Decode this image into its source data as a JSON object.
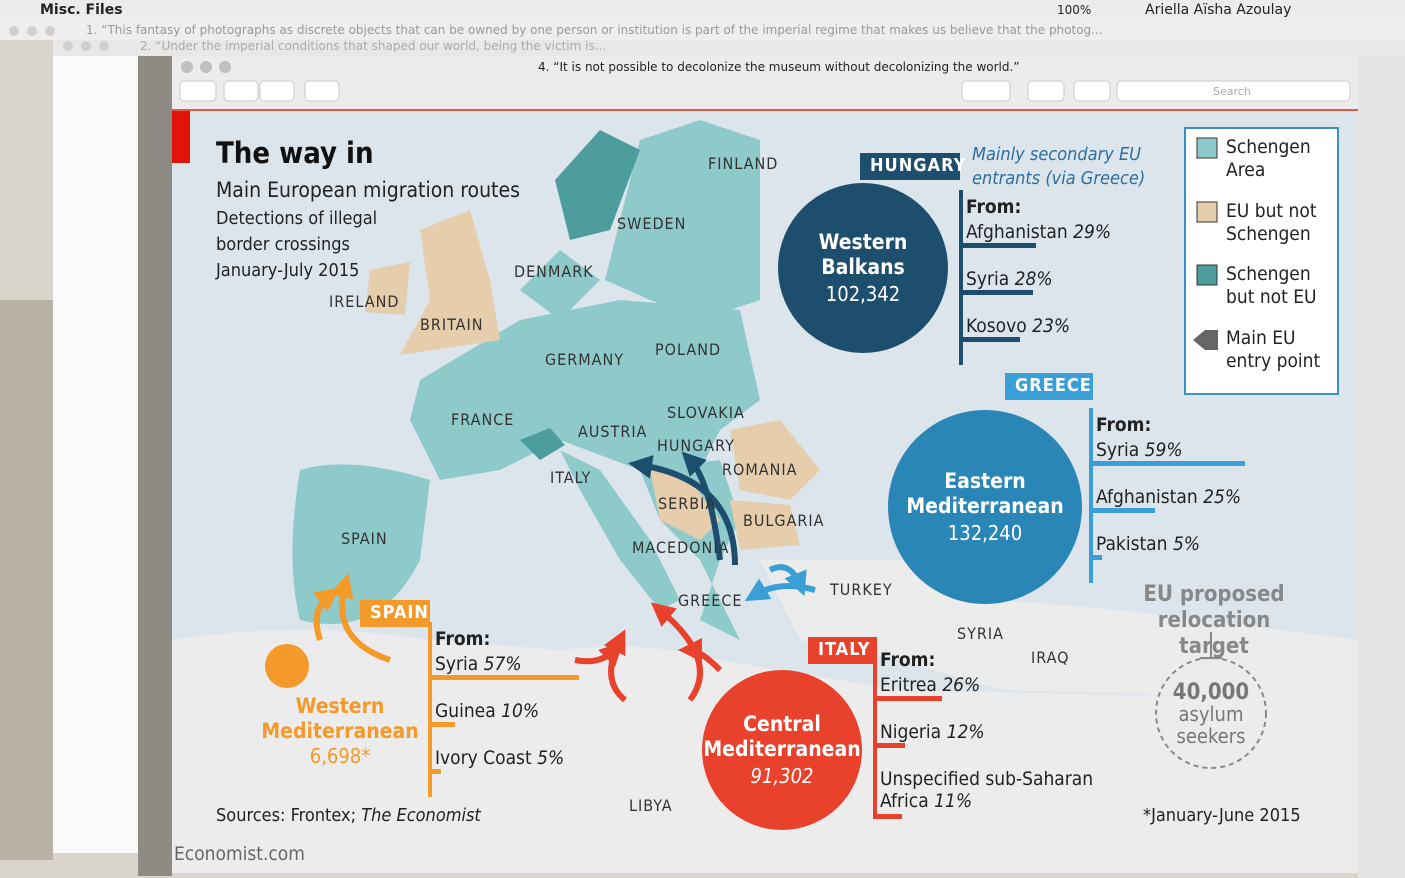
{
  "menubar": {
    "app": "Misc. Files",
    "battery": "100%",
    "user": "Ariella Aïsha Azoulay"
  },
  "background_windows": [
    "1. “This fantasy of photographs as discrete objects that can be owned by one person or institution is part of the imperial regime that makes us believe that the photog...",
    "2. “Under the imperial conditions that shaped our world, being the victim is..."
  ],
  "window": {
    "title": "4. “It is not possible to decolonize the museum without decolonizing the world.”",
    "search": "Search"
  },
  "infographic": {
    "title": "The way in",
    "subtitle": "Main European migration routes",
    "description": [
      "Detections of illegal",
      "border crossings",
      "January-July 2015"
    ],
    "countries": [
      "FINLAND",
      "SWEDEN",
      "DENMARK",
      "IRELAND",
      "BRITAIN",
      "GERMANY",
      "POLAND",
      "FRANCE",
      "AUSTRIA",
      "SLOVAKIA",
      "HUNGARY",
      "ROMANIA",
      "ITALY",
      "SERBIA",
      "BULGARIA",
      "SPAIN",
      "MACEDONIA",
      "GREECE",
      "TURKEY",
      "SYRIA",
      "IRAQ",
      "LIBYA"
    ],
    "legend": [
      "Schengen Area",
      "EU but not Schengen",
      "Schengen but not EU",
      "Main EU entry point"
    ],
    "routes": [
      {
        "entry": "HUNGARY",
        "name": [
          "Western",
          "Balkans"
        ],
        "total": "102,342",
        "note": "Mainly secondary EU entrants (via Greece)",
        "from": "From:",
        "origins": [
          {
            "country": "Afghanistan",
            "share": 29,
            "share_label": "29%"
          },
          {
            "country": "Syria",
            "share": 28,
            "share_label": "28%"
          },
          {
            "country": "Kosovo",
            "share": 23,
            "share_label": "23%"
          }
        ]
      },
      {
        "entry": "GREECE",
        "name": [
          "Eastern",
          "Mediterranean"
        ],
        "total": "132,240",
        "from": "From:",
        "origins": [
          {
            "country": "Syria",
            "share": 59,
            "share_label": "59%"
          },
          {
            "country": "Afghanistan",
            "share": 25,
            "share_label": "25%"
          },
          {
            "country": "Pakistan",
            "share": 5,
            "share_label": "5%"
          }
        ]
      },
      {
        "entry": "SPAIN",
        "name": [
          "Western",
          "Mediterranean"
        ],
        "total": "6,698*",
        "from": "From:",
        "origins": [
          {
            "country": "Syria",
            "share": 57,
            "share_label": "57%"
          },
          {
            "country": "Guinea",
            "share": 10,
            "share_label": "10%"
          },
          {
            "country": "Ivory Coast",
            "share": 5,
            "share_label": "5%"
          }
        ]
      },
      {
        "entry": "ITALY",
        "name": [
          "Central",
          "Mediterranean"
        ],
        "total": "91,302",
        "from": "From:",
        "origins": [
          {
            "country": "Eritrea",
            "share": 26,
            "share_label": "26%"
          },
          {
            "country": "Nigeria",
            "share": 12,
            "share_label": "12%"
          },
          {
            "country": "Unspecified sub-Saharan Africa",
            "share": 11,
            "share_label": "11%"
          }
        ]
      }
    ],
    "relocation": {
      "title": "EU proposed relocation target",
      "number": "40,000",
      "unit": "asylum seekers"
    },
    "sources": "Sources: Frontex;",
    "sources_italic": "The Economist",
    "footnote": "*January-June 2015",
    "credit": "Economist.com"
  }
}
